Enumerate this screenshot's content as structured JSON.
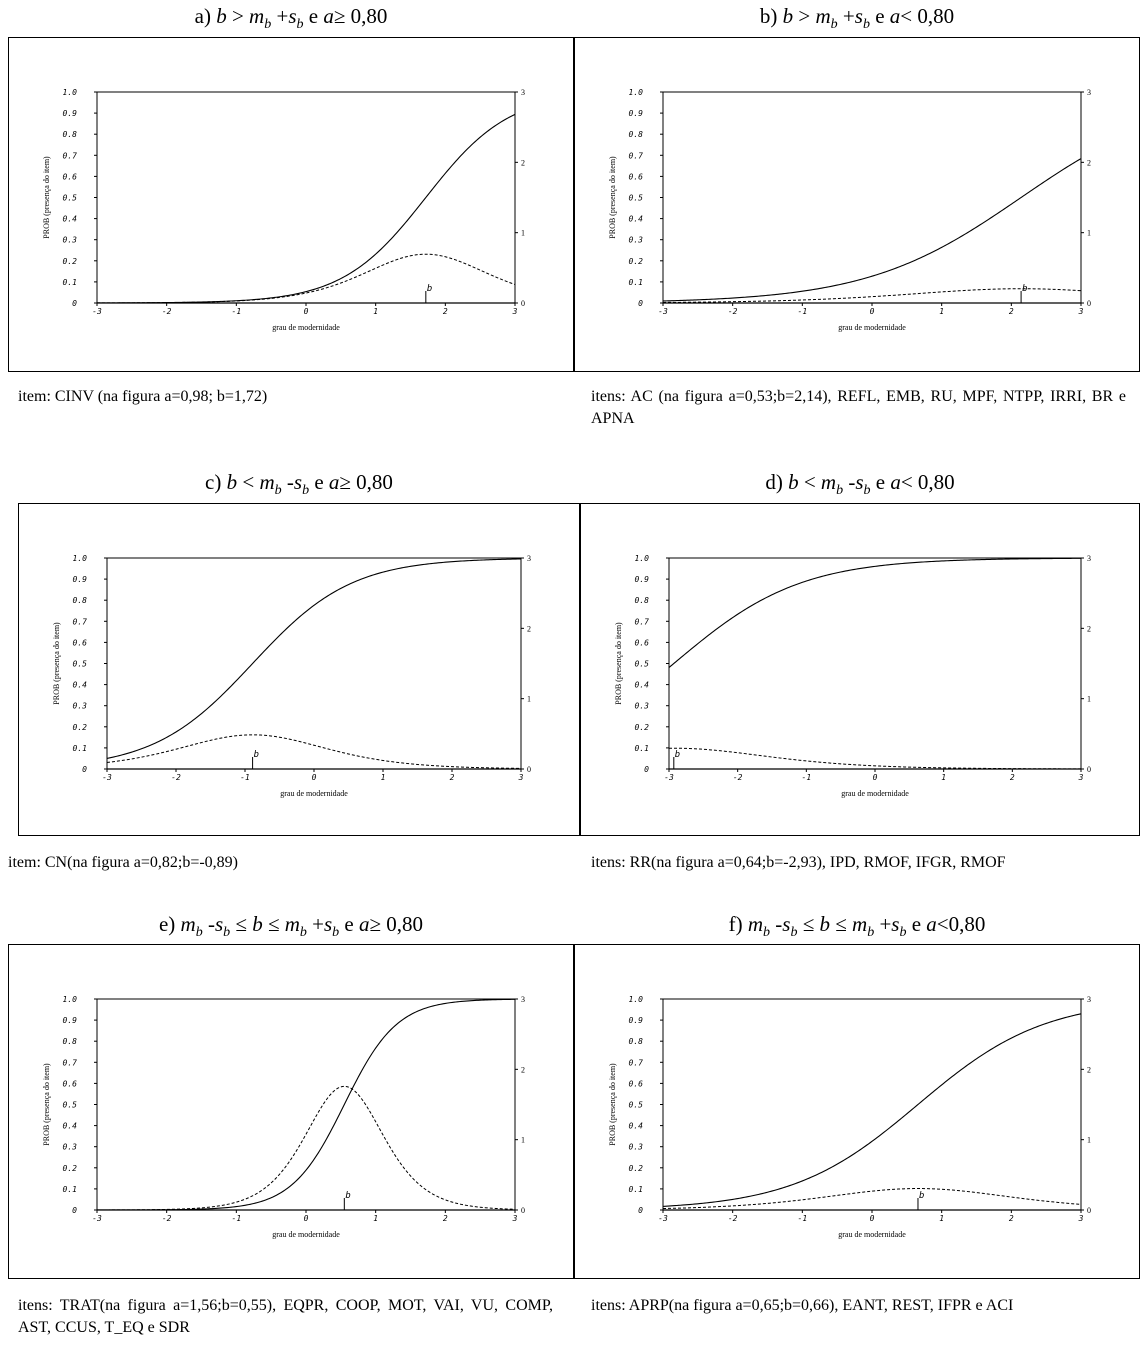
{
  "panels": [
    {
      "id": "a",
      "title_prefix": "a) ",
      "title_html": "<i>b</i> &gt; <i>m</i><sub>b</sub> +<i>s</i><sub>b</sub> e <i>a</i>≥ 0,80",
      "caption": "item: CINV (na figura a=0,98; b=1,72)"
    },
    {
      "id": "b",
      "title_prefix": "b) ",
      "title_html": "<i>b</i> &gt; <i>m</i><sub>b</sub> +<i>s</i><sub>b</sub> e <i>a</i>&lt; 0,80",
      "caption": "itens: AC (na figura a=0,53;b=2,14), REFL, EMB, RU, MPF, NTPP, IRRI, BR e APNA"
    },
    {
      "id": "c",
      "title_prefix": "c) ",
      "title_html": "<i>b</i> &lt; <i>m</i><sub>b</sub> -<i>s</i><sub>b</sub> e <i>a</i>≥ 0,80",
      "caption": "item: CN(na figura a=0,82;b=-0,89)"
    },
    {
      "id": "d",
      "title_prefix": "d) ",
      "title_html": "<i>b</i> &lt; <i>m</i><sub>b</sub> -<i>s</i><sub>b</sub> e <i>a</i>&lt; 0,80",
      "caption": "itens: RR(na figura a=0,64;b=-2,93), IPD, RMOF, IFGR, RMOF"
    },
    {
      "id": "e",
      "title_prefix": "e) ",
      "title_html": "<i>m</i><sub>b</sub> -<i>s</i><sub>b</sub> ≤ <i>b</i> ≤ <i>m</i><sub>b</sub> +<i>s</i><sub>b</sub> e <i>a</i>≥ 0,80",
      "caption": "itens: TRAT(na figura a=1,56;b=0,55), EQPR, COOP, MOT, VAI, VU, COMP, AST, CCUS, T_EQ e SDR"
    },
    {
      "id": "f",
      "title_prefix": "f) ",
      "title_html": "<i>m</i><sub>b</sub> -<i>s</i><sub>b</sub> ≤ <i>b</i> ≤ <i>m</i><sub>b</sub> +<i>s</i><sub>b</sub> e <i>a</i>&lt;0,80",
      "caption": "itens: APRP(na figura a=0,65;b=0,66), EANT, REST, IFPR e ACI"
    }
  ],
  "chart_data": [
    {
      "panel": "a",
      "type": "line",
      "a": 0.98,
      "b": 1.72,
      "xlim": [
        -3,
        3
      ],
      "ylim": [
        0,
        1
      ],
      "y2lim": [
        0,
        3
      ],
      "xlabel": "grau de modernidade",
      "ylabel": "PROB (presença do item)",
      "b_marker": "b",
      "x_ticks": [
        "-3",
        "-2",
        "-1",
        "0",
        "1",
        "2",
        "3"
      ],
      "y_ticks": [
        "0",
        "0.1",
        "0.2",
        "0.3",
        "0.4",
        "0.5",
        "0.6",
        "0.7",
        "0.8",
        "0.9",
        "1.0"
      ],
      "y2_ticks": [
        "0",
        "1",
        "2",
        "3"
      ],
      "series": [
        {
          "style": "solid",
          "curve": "probability"
        },
        {
          "style": "dashed",
          "curve": "information"
        }
      ]
    },
    {
      "panel": "b",
      "type": "line",
      "a": 0.53,
      "b": 2.14,
      "xlim": [
        -3,
        3
      ],
      "ylim": [
        0,
        1
      ],
      "y2lim": [
        0,
        3
      ],
      "xlabel": "grau de modernidade",
      "ylabel": "PROB (presença do item)",
      "b_marker": "b",
      "x_ticks": [
        "-3",
        "-2",
        "-1",
        "0",
        "1",
        "2",
        "3"
      ],
      "y_ticks": [
        "0",
        "0.1",
        "0.2",
        "0.3",
        "0.4",
        "0.5",
        "0.6",
        "0.7",
        "0.8",
        "0.9",
        "1.0"
      ],
      "y2_ticks": [
        "0",
        "1",
        "2",
        "3"
      ],
      "series": [
        {
          "style": "solid",
          "curve": "probability"
        },
        {
          "style": "dashed",
          "curve": "information"
        }
      ]
    },
    {
      "panel": "c",
      "type": "line",
      "a": 0.82,
      "b": -0.89,
      "xlim": [
        -3,
        3
      ],
      "ylim": [
        0,
        1
      ],
      "y2lim": [
        0,
        3
      ],
      "xlabel": "grau de modernidade",
      "ylabel": "PROB (presença do item)",
      "b_marker": "b",
      "x_ticks": [
        "-3",
        "-2",
        "-1",
        "0",
        "1",
        "2",
        "3"
      ],
      "y_ticks": [
        "0",
        "0.1",
        "0.2",
        "0.3",
        "0.4",
        "0.5",
        "0.6",
        "0.7",
        "0.8",
        "0.9",
        "1.0"
      ],
      "y2_ticks": [
        "0",
        "1",
        "2",
        "3"
      ],
      "series": [
        {
          "style": "solid",
          "curve": "probability"
        },
        {
          "style": "dashed",
          "curve": "information"
        }
      ]
    },
    {
      "panel": "d",
      "type": "line",
      "a": 0.64,
      "b": -2.93,
      "xlim": [
        -3,
        3
      ],
      "ylim": [
        0,
        1
      ],
      "y2lim": [
        0,
        3
      ],
      "xlabel": "grau de modernidade",
      "ylabel": "PROB (presença do item)",
      "b_marker": "b",
      "x_ticks": [
        "-3",
        "-2",
        "-1",
        "0",
        "1",
        "2",
        "3"
      ],
      "y_ticks": [
        "0",
        "0.1",
        "0.2",
        "0.3",
        "0.4",
        "0.5",
        "0.6",
        "0.7",
        "0.8",
        "0.9",
        "1.0"
      ],
      "y2_ticks": [
        "0",
        "1",
        "2",
        "3"
      ],
      "series": [
        {
          "style": "solid",
          "curve": "probability"
        },
        {
          "style": "dashed",
          "curve": "information"
        }
      ]
    },
    {
      "panel": "e",
      "type": "line",
      "a": 1.56,
      "b": 0.55,
      "xlim": [
        -3,
        3
      ],
      "ylim": [
        0,
        1
      ],
      "y2lim": [
        0,
        3
      ],
      "xlabel": "grau de modernidade",
      "ylabel": "PROB (presença do item)",
      "b_marker": "b",
      "x_ticks": [
        "-3",
        "-2",
        "-1",
        "0",
        "1",
        "2",
        "3"
      ],
      "y_ticks": [
        "0",
        "0.1",
        "0.2",
        "0.3",
        "0.4",
        "0.5",
        "0.6",
        "0.7",
        "0.8",
        "0.9",
        "1.0"
      ],
      "y2_ticks": [
        "0",
        "1",
        "2",
        "3"
      ],
      "series": [
        {
          "style": "solid",
          "curve": "probability"
        },
        {
          "style": "dashed",
          "curve": "information"
        }
      ]
    },
    {
      "panel": "f",
      "type": "line",
      "a": 0.65,
      "b": 0.66,
      "xlim": [
        -3,
        3
      ],
      "ylim": [
        0,
        1
      ],
      "y2lim": [
        0,
        3
      ],
      "xlabel": "grau de modernidade",
      "ylabel": "PROB (presença do item)",
      "b_marker": "b",
      "x_ticks": [
        "-3",
        "-2",
        "-1",
        "0",
        "1",
        "2",
        "3"
      ],
      "y_ticks": [
        "0",
        "0.1",
        "0.2",
        "0.3",
        "0.4",
        "0.5",
        "0.6",
        "0.7",
        "0.8",
        "0.9",
        "1.0"
      ],
      "y2_ticks": [
        "0",
        "1",
        "2",
        "3"
      ],
      "series": [
        {
          "style": "solid",
          "curve": "probability"
        },
        {
          "style": "dashed",
          "curve": "information"
        }
      ]
    }
  ]
}
